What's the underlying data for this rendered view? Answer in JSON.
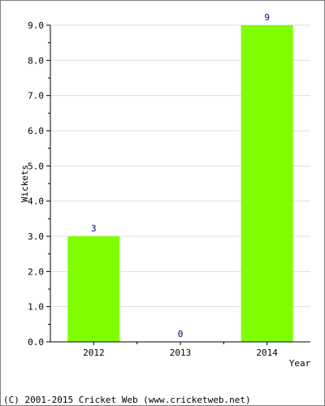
{
  "chart_data": {
    "type": "bar",
    "categories": [
      "2012",
      "2013",
      "2014"
    ],
    "values": [
      3,
      0,
      9
    ],
    "data_labels": [
      "3",
      "0",
      "9"
    ],
    "y_ticks": [
      "0.0",
      "1.0",
      "2.0",
      "3.0",
      "4.0",
      "5.0",
      "6.0",
      "7.0",
      "8.0",
      "9.0"
    ],
    "xlabel": "Year",
    "ylabel": "Wickets",
    "ylim": [
      0,
      9
    ],
    "grid": true,
    "bar_color": "#7fff00",
    "data_label_color": "#00008b"
  },
  "footer": {
    "copyright": "(C) 2001-2015 Cricket Web (www.cricketweb.net)"
  }
}
